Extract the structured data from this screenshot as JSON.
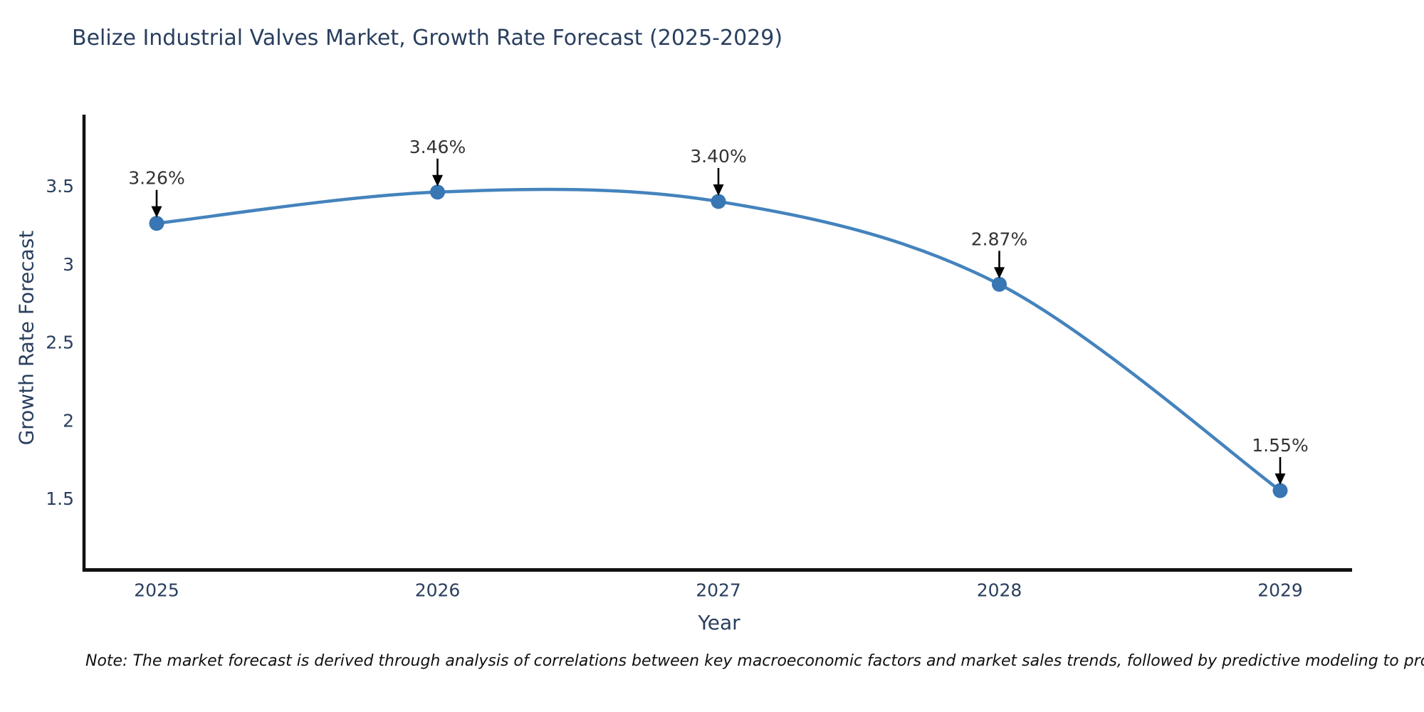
{
  "page": {
    "background": "#ffffff"
  },
  "chart_data": {
    "type": "line",
    "title": "Belize Industrial Valves Market, Growth Rate Forecast (2025-2029)",
    "xlabel": "Year",
    "ylabel": "Growth Rate Forecast",
    "x": [
      2025,
      2026,
      2027,
      2028,
      2029
    ],
    "values": [
      3.26,
      3.46,
      3.4,
      2.87,
      1.55
    ],
    "point_labels": [
      "3.26%",
      "3.46%",
      "3.40%",
      "2.87%",
      "1.55%"
    ],
    "x_tick_labels": [
      "2025",
      "2026",
      "2027",
      "2028",
      "2029"
    ],
    "y_ticks": [
      1.5,
      2,
      2.5,
      3,
      3.5
    ],
    "y_tick_labels": [
      "1.5",
      "2",
      "2.5",
      "3",
      "3.5"
    ],
    "xlim": [
      2024.74,
      2029.26
    ],
    "ylim": [
      1.04,
      3.95
    ],
    "grid": false,
    "legend": null,
    "line_shape": "spline",
    "line_color": "#4483bd",
    "marker_color": "#3876b4",
    "axis_line_color": "#111111",
    "annotation_arrow_color": "#000000",
    "title_color": "#2a3f5f",
    "tick_color": "#2a3f5f",
    "note": "Note: The market forecast is derived through analysis of correlations between key macroeconomic factors and market sales trends, followed by predictive modeling to project future sales"
  }
}
